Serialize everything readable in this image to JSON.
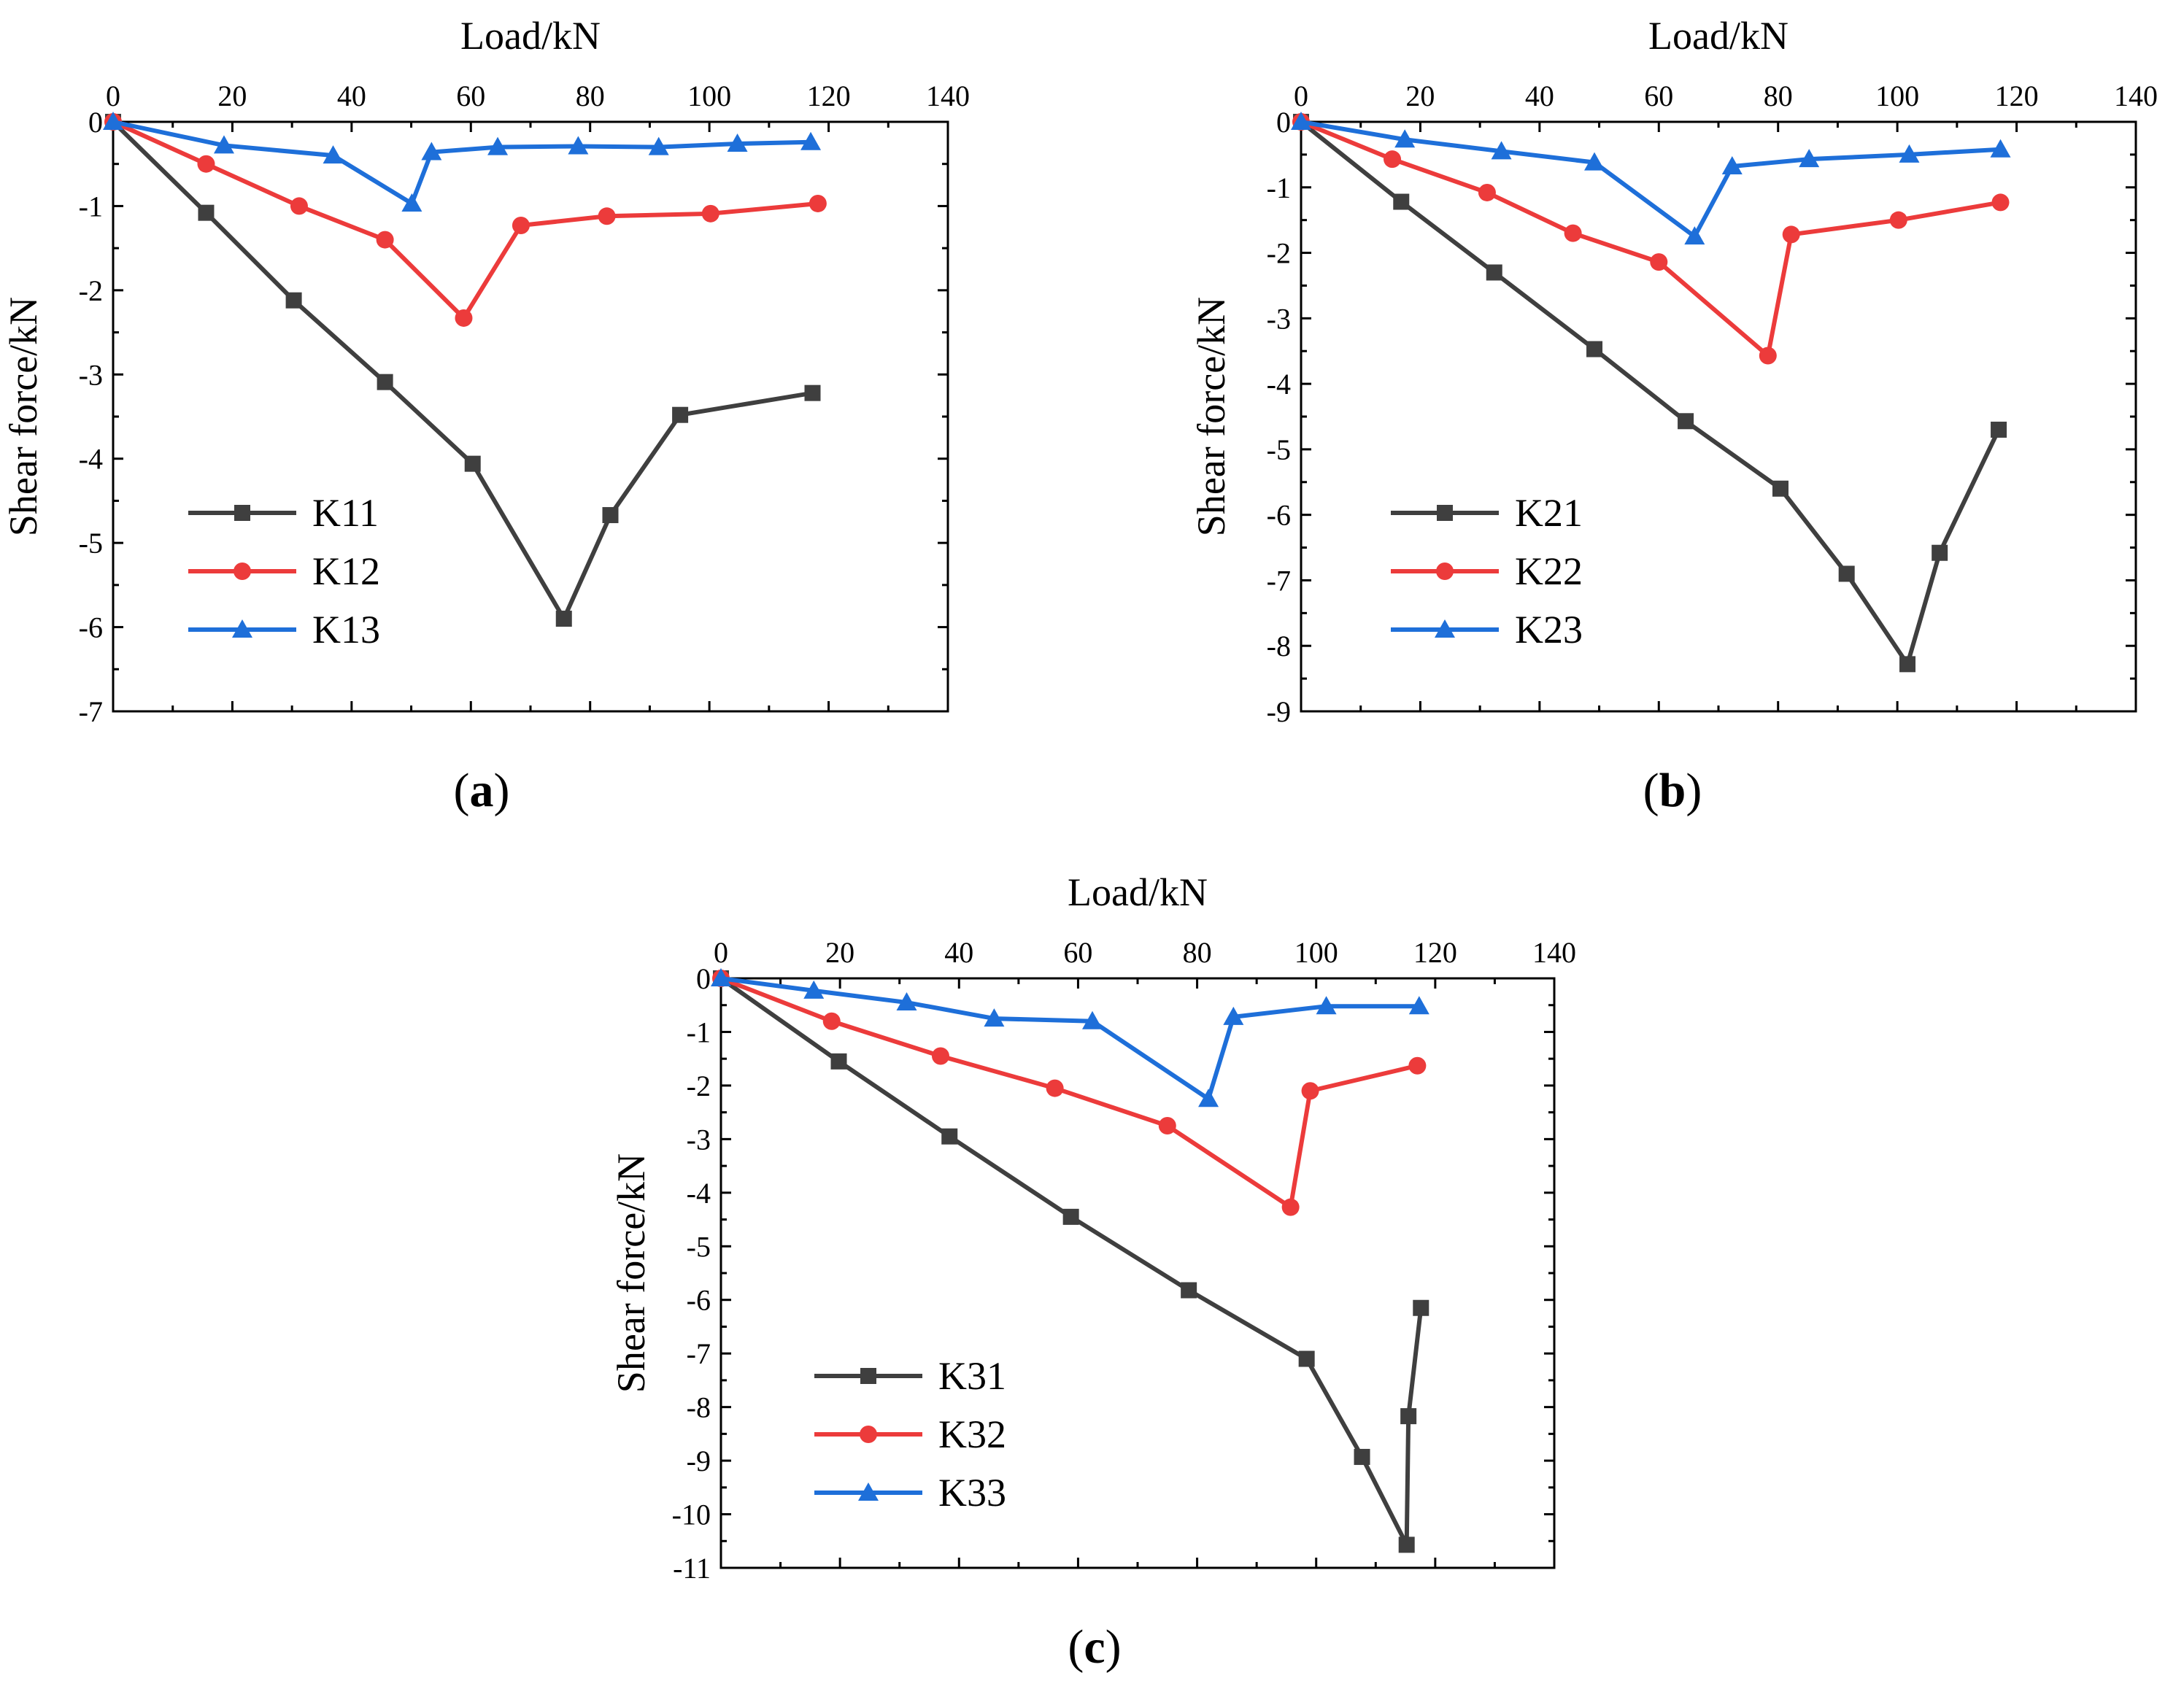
{
  "colors": {
    "black_series": "#3f3f3f",
    "red_series": "#ec3b3b",
    "blue_series": "#1e6fd9",
    "axis": "#000000",
    "background": "#ffffff"
  },
  "chart_data": [
    {
      "type": "line",
      "panel_label": "a",
      "xlabel": "Load/kN",
      "ylabel": "Shear force/kN",
      "xlim": [
        0,
        140
      ],
      "ylim": [
        -7,
        0
      ],
      "x_ticks": [
        0,
        20,
        40,
        60,
        80,
        100,
        120,
        140
      ],
      "y_ticks": [
        0,
        -1,
        -2,
        -3,
        -4,
        -5,
        -6,
        -7
      ],
      "x_axis_position": "top",
      "legend_position": "lower-left",
      "series": [
        {
          "name": "K11",
          "marker": "square",
          "color": "#3f3f3f",
          "x": [
            0,
            15.6,
            30.3,
            45.6,
            60.3,
            75.6,
            83.4,
            95.1,
            117.3
          ],
          "y": [
            0,
            -1.08,
            -2.12,
            -3.09,
            -4.06,
            -5.9,
            -4.67,
            -3.48,
            -3.22
          ]
        },
        {
          "name": "K12",
          "marker": "circle",
          "color": "#ec3b3b",
          "x": [
            0,
            15.6,
            31.2,
            45.6,
            58.8,
            68.4,
            82.8,
            100.2,
            118.2
          ],
          "y": [
            0,
            -0.5,
            -1.0,
            -1.4,
            -2.33,
            -1.23,
            -1.12,
            -1.09,
            -0.97
          ]
        },
        {
          "name": "K13",
          "marker": "triangle",
          "color": "#1e6fd9",
          "x": [
            0,
            18.6,
            36.9,
            50.1,
            53.4,
            64.5,
            78.0,
            91.5,
            104.7,
            117.0
          ],
          "y": [
            0,
            -0.28,
            -0.4,
            -0.97,
            -0.36,
            -0.3,
            -0.29,
            -0.3,
            -0.26,
            -0.24
          ]
        }
      ]
    },
    {
      "type": "line",
      "panel_label": "b",
      "xlabel": "Load/kN",
      "ylabel": "Shear force/kN",
      "xlim": [
        0,
        140
      ],
      "ylim": [
        -9,
        0
      ],
      "x_ticks": [
        0,
        20,
        40,
        60,
        80,
        100,
        120,
        140
      ],
      "y_ticks": [
        0,
        -1,
        -2,
        -3,
        -4,
        -5,
        -6,
        -7,
        -8,
        -9
      ],
      "x_axis_position": "top",
      "legend_position": "lower-left",
      "series": [
        {
          "name": "K21",
          "marker": "square",
          "color": "#3f3f3f",
          "x": [
            0,
            16.8,
            32.4,
            49.2,
            64.5,
            80.4,
            91.5,
            101.7,
            107.1,
            117.0
          ],
          "y": [
            0,
            -1.22,
            -2.3,
            -3.47,
            -4.57,
            -5.6,
            -6.9,
            -8.28,
            -6.58,
            -4.7
          ]
        },
        {
          "name": "K22",
          "marker": "circle",
          "color": "#ec3b3b",
          "x": [
            0,
            15.3,
            31.2,
            45.6,
            60.0,
            78.3,
            82.2,
            100.2,
            117.3
          ],
          "y": [
            0,
            -0.57,
            -1.08,
            -1.7,
            -2.14,
            -3.57,
            -1.72,
            -1.5,
            -1.23
          ]
        },
        {
          "name": "K23",
          "marker": "triangle",
          "color": "#1e6fd9",
          "x": [
            0,
            17.4,
            33.6,
            49.2,
            66.0,
            72.3,
            85.2,
            102.0,
            117.3
          ],
          "y": [
            0,
            -0.27,
            -0.45,
            -0.62,
            -1.75,
            -0.68,
            -0.57,
            -0.5,
            -0.42
          ]
        }
      ]
    },
    {
      "type": "line",
      "panel_label": "c",
      "xlabel": "Load/kN",
      "ylabel": "Shear force/kN",
      "xlim": [
        0,
        140
      ],
      "ylim": [
        -11,
        0
      ],
      "x_ticks": [
        0,
        20,
        40,
        60,
        80,
        100,
        120,
        140
      ],
      "y_ticks": [
        0,
        -1,
        -2,
        -3,
        -4,
        -5,
        -6,
        -7,
        -8,
        -9,
        -10,
        -11
      ],
      "x_axis_position": "top",
      "legend_position": "lower-left",
      "series": [
        {
          "name": "K31",
          "marker": "square",
          "color": "#3f3f3f",
          "x": [
            0,
            19.8,
            38.4,
            58.8,
            78.6,
            98.4,
            107.7,
            115.2,
            115.5,
            117.6
          ],
          "y": [
            0,
            -1.55,
            -2.95,
            -4.45,
            -5.82,
            -7.1,
            -8.93,
            -10.57,
            -8.17,
            -6.15
          ]
        },
        {
          "name": "K32",
          "marker": "circle",
          "color": "#ec3b3b",
          "x": [
            0,
            18.6,
            36.9,
            56.1,
            75.0,
            95.7,
            99.0,
            117.0
          ],
          "y": [
            0,
            -0.8,
            -1.45,
            -2.05,
            -2.75,
            -4.27,
            -2.1,
            -1.63
          ]
        },
        {
          "name": "K33",
          "marker": "triangle",
          "color": "#1e6fd9",
          "x": [
            0,
            15.6,
            31.2,
            45.9,
            62.4,
            81.9,
            86.1,
            101.7,
            117.3
          ],
          "y": [
            0,
            -0.23,
            -0.45,
            -0.75,
            -0.8,
            -2.25,
            -0.72,
            -0.52,
            -0.52
          ]
        }
      ]
    }
  ]
}
